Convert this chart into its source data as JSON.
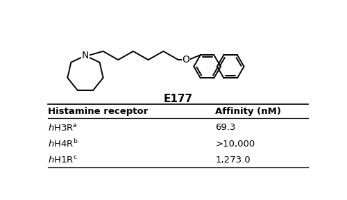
{
  "compound_name": "E177",
  "table_header_col1": "Histamine receptor",
  "table_header_col2": "Affinity (nM)",
  "table_rows": [
    {
      "receptor": "hH3R",
      "superscript": "a",
      "affinity": "69.3"
    },
    {
      "receptor": "hH4R",
      "superscript": "b",
      "affinity": ">10,000"
    },
    {
      "receptor": "hH1R",
      "superscript": "c",
      "affinity": "1,273.0"
    }
  ],
  "bg_color": "#ffffff",
  "line_color": "#000000",
  "text_color": "#000000",
  "struct_lw": 1.4,
  "fig_w": 5.0,
  "fig_h": 2.88,
  "dpi": 100
}
